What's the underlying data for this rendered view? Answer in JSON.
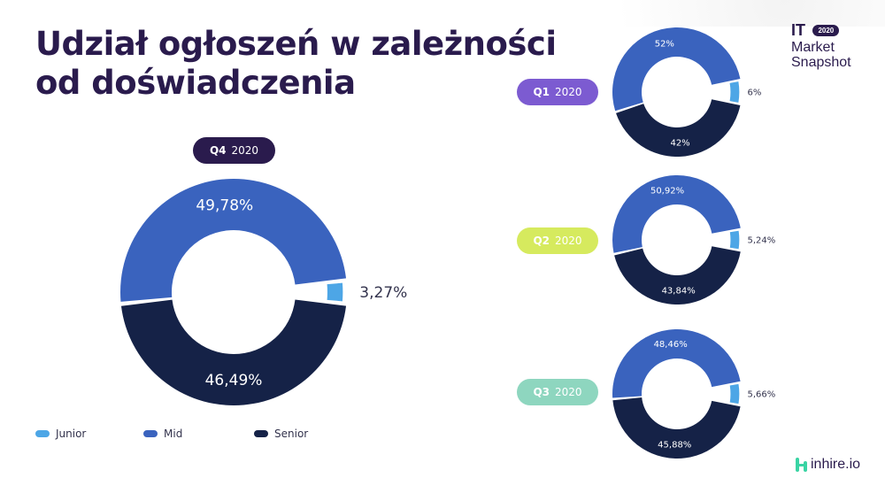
{
  "title_line1": "Udział ogłoszeń w zależności",
  "title_line2": "od doświadczenia",
  "brand": {
    "it": "IT",
    "year": "2020",
    "line1": "Market",
    "line2": "Snapshot"
  },
  "logo": "inhire.io",
  "colors": {
    "junior": "#4da6e6",
    "mid": "#3a63be",
    "senior": "#152247"
  },
  "legend": [
    {
      "label": "Junior",
      "color": "#4da6e6"
    },
    {
      "label": "Mid",
      "color": "#3a63be"
    },
    {
      "label": "Senior",
      "color": "#152247"
    }
  ],
  "chart_data": [
    {
      "type": "pie",
      "quarter": "Q4",
      "year": "2020",
      "pill_color": "#2a1b4d",
      "pill_text_color": "#ffffff",
      "categories": [
        "Junior",
        "Mid",
        "Senior"
      ],
      "values": [
        3.27,
        49.78,
        46.49
      ],
      "labels": [
        "3,27%",
        "49,78%",
        "46,49%"
      ]
    },
    {
      "type": "pie",
      "quarter": "Q1",
      "year": "2020",
      "pill_color": "#7c5bd1",
      "pill_text_color": "#ffffff",
      "categories": [
        "Junior",
        "Mid",
        "Senior"
      ],
      "values": [
        6,
        52,
        42
      ],
      "labels": [
        "6%",
        "52%",
        "42%"
      ]
    },
    {
      "type": "pie",
      "quarter": "Q2",
      "year": "2020",
      "pill_color": "#d6ea5e",
      "pill_text_color": "#ffffff",
      "categories": [
        "Junior",
        "Mid",
        "Senior"
      ],
      "values": [
        5.24,
        50.92,
        43.84
      ],
      "labels": [
        "5,24%",
        "50,92%",
        "43,84%"
      ]
    },
    {
      "type": "pie",
      "quarter": "Q3",
      "year": "2020",
      "pill_color": "#8ed6bf",
      "pill_text_color": "#ffffff",
      "categories": [
        "Junior",
        "Mid",
        "Senior"
      ],
      "values": [
        5.66,
        48.46,
        45.88
      ],
      "labels": [
        "5,66%",
        "48,46%",
        "45,88%"
      ]
    }
  ]
}
